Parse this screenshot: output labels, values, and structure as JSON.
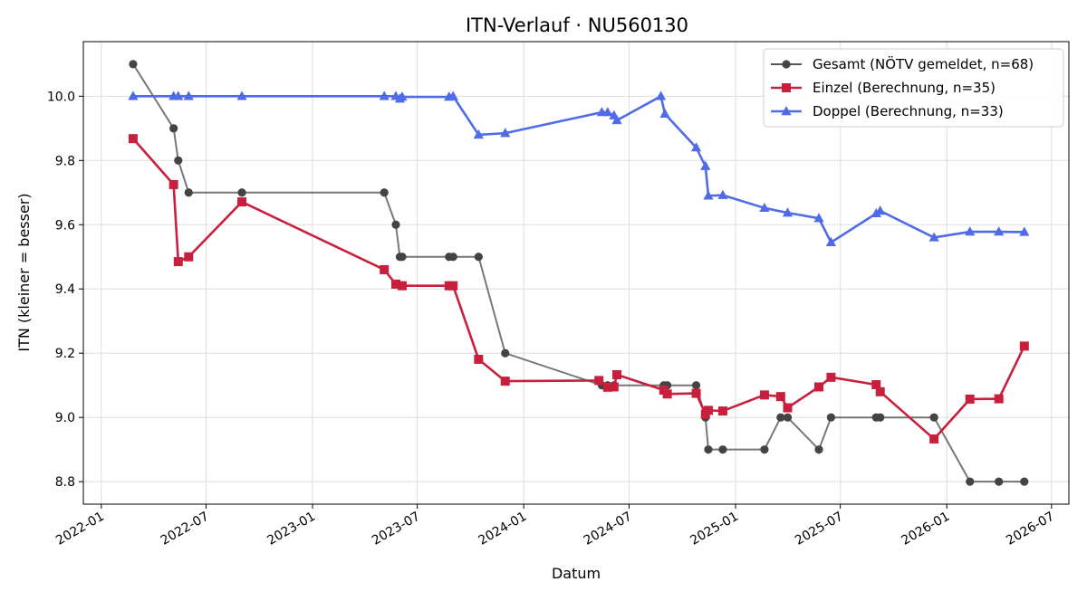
{
  "chart_data": {
    "type": "line",
    "title": "ITN-Verlauf · NU560130",
    "xlabel": "Datum",
    "ylabel": "ITN  (kleiner = besser)",
    "xlim": [
      "2021-12-01",
      "2026-07-31"
    ],
    "ylim": [
      8.73,
      10.17
    ],
    "x_ticks": [
      "2022-01",
      "2022-07",
      "2023-01",
      "2023-07",
      "2024-01",
      "2024-07",
      "2025-01",
      "2025-07",
      "2026-01",
      "2026-07"
    ],
    "y_ticks": [
      "8.8",
      "9.0",
      "9.2",
      "9.4",
      "9.6",
      "9.8",
      "10.0"
    ],
    "grid": true,
    "legend_position": "top-right",
    "series": [
      {
        "name": "Gesamt (NÖTV gemeldet, n=68)",
        "color": "#555555",
        "marker": "circle",
        "points": [
          [
            "2022-02-25",
            10.1
          ],
          [
            "2022-05-06",
            9.9
          ],
          [
            "2022-05-14",
            9.8
          ],
          [
            "2022-06-01",
            9.7
          ],
          [
            "2022-09-01",
            9.7
          ],
          [
            "2023-05-05",
            9.7
          ],
          [
            "2023-05-25",
            9.6
          ],
          [
            "2023-06-01",
            9.5
          ],
          [
            "2023-06-05",
            9.5
          ],
          [
            "2023-08-25",
            9.5
          ],
          [
            "2023-09-01",
            9.5
          ],
          [
            "2023-10-15",
            9.5
          ],
          [
            "2023-11-30",
            9.2
          ],
          [
            "2024-05-15",
            9.1
          ],
          [
            "2024-05-25",
            9.1
          ],
          [
            "2024-06-05",
            9.1
          ],
          [
            "2024-08-30",
            9.1
          ],
          [
            "2024-09-05",
            9.1
          ],
          [
            "2024-10-25",
            9.1
          ],
          [
            "2024-11-10",
            9.0
          ],
          [
            "2024-11-15",
            8.9
          ],
          [
            "2024-12-10",
            8.9
          ],
          [
            "2025-02-20",
            8.9
          ],
          [
            "2025-03-20",
            9.0
          ],
          [
            "2025-04-01",
            9.0
          ],
          [
            "2025-05-25",
            8.9
          ],
          [
            "2025-06-15",
            9.0
          ],
          [
            "2025-09-01",
            9.0
          ],
          [
            "2025-09-08",
            9.0
          ],
          [
            "2025-12-10",
            9.0
          ],
          [
            "2026-02-10",
            8.8
          ],
          [
            "2026-04-01",
            8.8
          ],
          [
            "2026-05-15",
            8.8
          ]
        ]
      },
      {
        "name": "Einzel (Berechnung, n=35)",
        "color": "#c8203c",
        "marker": "square",
        "points": [
          [
            "2022-02-25",
            9.868
          ],
          [
            "2022-05-06",
            9.725
          ],
          [
            "2022-05-14",
            9.485
          ],
          [
            "2022-06-01",
            9.5
          ],
          [
            "2022-09-01",
            9.671
          ],
          [
            "2023-05-05",
            9.46
          ],
          [
            "2023-05-25",
            9.415
          ],
          [
            "2023-06-05",
            9.41
          ],
          [
            "2023-08-25",
            9.41
          ],
          [
            "2023-09-01",
            9.41
          ],
          [
            "2023-10-15",
            9.181
          ],
          [
            "2023-11-30",
            9.113
          ],
          [
            "2024-05-10",
            9.115
          ],
          [
            "2024-05-25",
            9.094
          ],
          [
            "2024-06-05",
            9.095
          ],
          [
            "2024-06-10",
            9.133
          ],
          [
            "2024-08-30",
            9.085
          ],
          [
            "2024-09-05",
            9.073
          ],
          [
            "2024-10-25",
            9.075
          ],
          [
            "2024-11-10",
            9.01
          ],
          [
            "2024-11-15",
            9.022
          ],
          [
            "2024-12-10",
            9.02
          ],
          [
            "2025-02-20",
            9.07
          ],
          [
            "2025-03-20",
            9.065
          ],
          [
            "2025-04-01",
            9.03
          ],
          [
            "2025-05-25",
            9.095
          ],
          [
            "2025-06-15",
            9.125
          ],
          [
            "2025-09-01",
            9.102
          ],
          [
            "2025-09-08",
            9.08
          ],
          [
            "2025-12-10",
            8.933
          ],
          [
            "2026-02-10",
            9.057
          ],
          [
            "2026-04-01",
            9.058
          ],
          [
            "2026-05-15",
            9.222
          ]
        ]
      },
      {
        "name": "Doppel (Berechnung, n=33)",
        "color": "#4f6be8",
        "marker": "triangle",
        "points": [
          [
            "2022-02-25",
            10.0
          ],
          [
            "2022-05-06",
            10.0
          ],
          [
            "2022-05-14",
            10.0
          ],
          [
            "2022-06-01",
            10.0
          ],
          [
            "2022-09-01",
            10.0
          ],
          [
            "2023-05-05",
            10.0
          ],
          [
            "2023-05-25",
            10.0
          ],
          [
            "2023-06-01",
            9.992
          ],
          [
            "2023-06-05",
            9.998
          ],
          [
            "2023-08-25",
            9.998
          ],
          [
            "2023-09-01",
            10.0
          ],
          [
            "2023-10-15",
            9.88
          ],
          [
            "2023-11-30",
            9.885
          ],
          [
            "2024-05-15",
            9.95
          ],
          [
            "2024-05-25",
            9.95
          ],
          [
            "2024-06-05",
            9.94
          ],
          [
            "2024-06-10",
            9.925
          ],
          [
            "2024-08-25",
            10.0
          ],
          [
            "2024-09-01",
            9.945
          ],
          [
            "2024-10-25",
            9.84
          ],
          [
            "2024-11-10",
            9.782
          ],
          [
            "2024-11-15",
            9.69
          ],
          [
            "2024-12-10",
            9.692
          ],
          [
            "2025-02-20",
            9.652
          ],
          [
            "2025-04-01",
            9.637
          ],
          [
            "2025-05-25",
            9.62
          ],
          [
            "2025-06-15",
            9.545
          ],
          [
            "2025-09-01",
            9.635
          ],
          [
            "2025-09-08",
            9.643
          ],
          [
            "2025-12-10",
            9.56
          ],
          [
            "2026-02-10",
            9.578
          ],
          [
            "2026-04-01",
            9.578
          ],
          [
            "2026-05-15",
            9.577
          ]
        ]
      }
    ]
  }
}
